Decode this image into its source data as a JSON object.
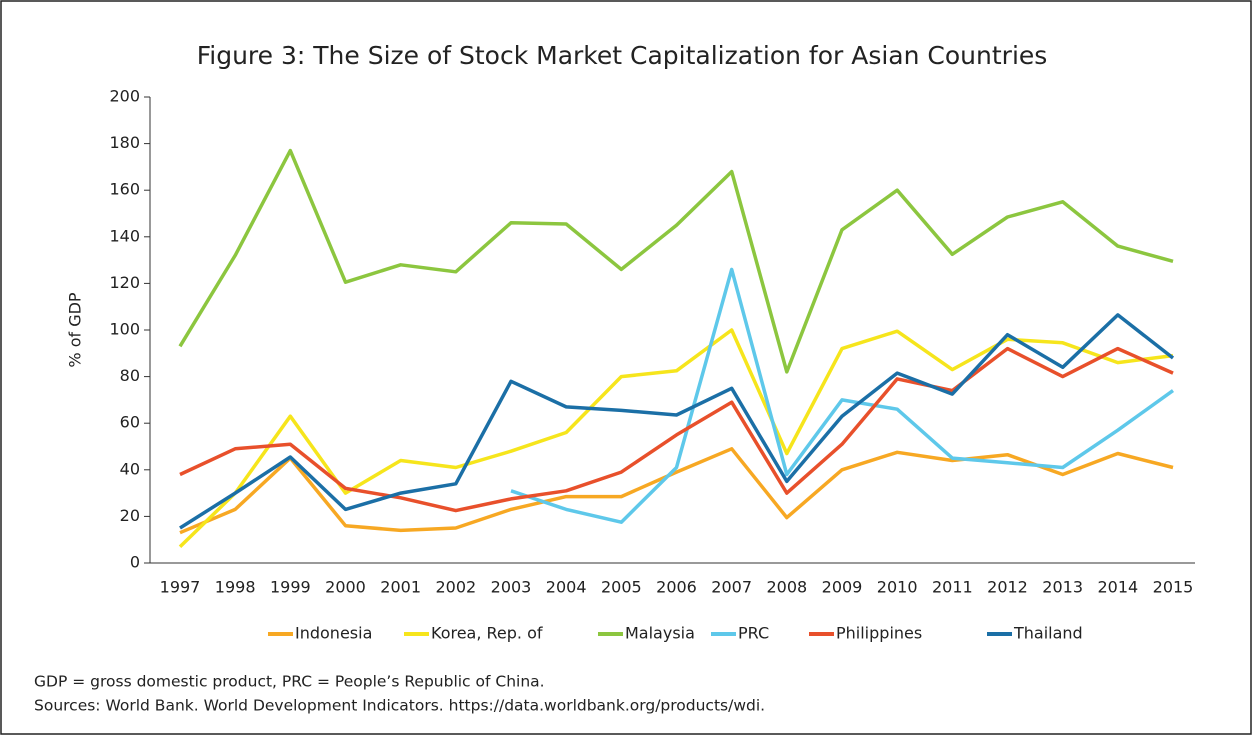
{
  "chart_data": {
    "type": "line",
    "title": "Figure 3: The Size of Stock Market Capitalization for Asian Countries",
    "y_label": "% of GDP",
    "categories": [
      "1997",
      "1998",
      "1999",
      "2000",
      "2001",
      "2002",
      "2003",
      "2004",
      "2005",
      "2006",
      "2007",
      "2008",
      "2009",
      "2010",
      "2011",
      "2012",
      "2013",
      "2014",
      "2015"
    ],
    "ylim": [
      0,
      200
    ],
    "yticks": [
      0,
      20,
      40,
      60,
      80,
      100,
      120,
      140,
      160,
      180,
      200
    ],
    "grid": false,
    "legend": "bottom",
    "series": [
      {
        "name": "Indonesia",
        "color": "#f7a823",
        "values": [
          13,
          23,
          45,
          16,
          14,
          15,
          23,
          28.5,
          28.5,
          39,
          49,
          19.5,
          40,
          47.5,
          44,
          46.5,
          38,
          47,
          41
        ]
      },
      {
        "name": "Korea, Rep. of",
        "color": "#f6e51c",
        "values": [
          7,
          30,
          63,
          30,
          44,
          41,
          48,
          56,
          80,
          82.5,
          100,
          47,
          92,
          99.5,
          83,
          96,
          94.5,
          86,
          89
        ]
      },
      {
        "name": "Malaysia",
        "color": "#8cc63f",
        "values": [
          93,
          132,
          177,
          120.5,
          128,
          125,
          146,
          145.5,
          126,
          145,
          168,
          82,
          143,
          160,
          132.5,
          148.5,
          155,
          136,
          129.5
        ]
      },
      {
        "name": "PRC",
        "color": "#5ec8ea",
        "values": [
          null,
          null,
          null,
          null,
          null,
          null,
          31,
          23,
          17.5,
          41,
          126,
          38,
          70,
          66,
          45,
          43,
          41,
          57,
          74
        ]
      },
      {
        "name": "Philippines",
        "color": "#e8502b",
        "values": [
          38,
          49,
          51,
          32,
          28,
          22.5,
          27.5,
          31,
          39,
          55,
          69,
          30,
          51,
          79,
          74,
          92,
          80,
          92,
          81.5
        ]
      },
      {
        "name": "Thailand",
        "color": "#1b6fa6",
        "values": [
          15,
          30,
          45.5,
          23,
          30,
          34,
          78,
          67,
          65.5,
          63.5,
          75,
          35,
          63,
          81.5,
          72.5,
          98,
          84,
          106.5,
          88
        ]
      }
    ]
  },
  "notes": [
    "GDP = gross domestic product, PRC = People’s Republic of China.",
    "Sources: World Bank. World Development Indicators. https://data.worldbank.org/products/wdi."
  ]
}
